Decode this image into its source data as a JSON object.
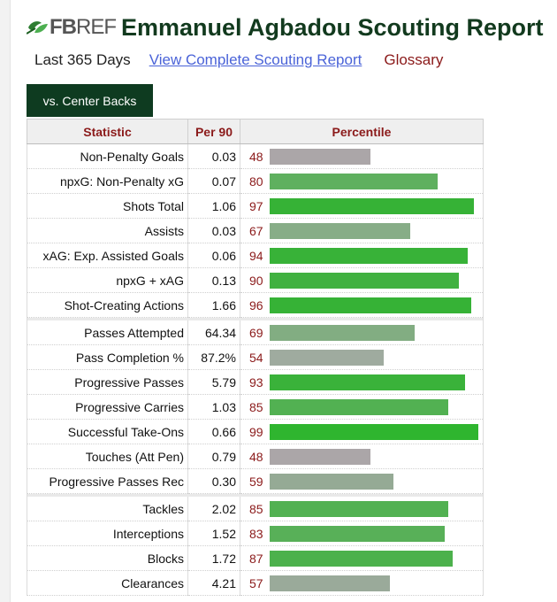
{
  "header": {
    "logo_fb": "FB",
    "logo_ref": "REF",
    "title": "Emmanuel Agbadou Scouting Report"
  },
  "subnav": {
    "period": "Last 365 Days",
    "full_report_link": "View Complete Scouting Report",
    "glossary_link": "Glossary"
  },
  "tab": {
    "label": "vs. Center Backs"
  },
  "table": {
    "columns": [
      "Statistic",
      "Per 90",
      "Percentile"
    ],
    "groups": [
      [
        {
          "stat": "Non-Penalty Goals",
          "per90": "0.03",
          "percentile": 48,
          "color": "#aba6a8"
        },
        {
          "stat": "npxG: Non-Penalty xG",
          "per90": "0.07",
          "percentile": 80,
          "color": "#5fb05f"
        },
        {
          "stat": "Shots Total",
          "per90": "1.06",
          "percentile": 97,
          "color": "#36b236"
        },
        {
          "stat": "Assists",
          "per90": "0.03",
          "percentile": 67,
          "color": "#87ad87"
        },
        {
          "stat": "xAG: Exp. Assisted Goals",
          "per90": "0.06",
          "percentile": 94,
          "color": "#38b238"
        },
        {
          "stat": "npxG + xAG",
          "per90": "0.13",
          "percentile": 90,
          "color": "#40b140"
        },
        {
          "stat": "Shot-Creating Actions",
          "per90": "1.66",
          "percentile": 96,
          "color": "#36b236"
        }
      ],
      [
        {
          "stat": "Passes Attempted",
          "per90": "64.34",
          "percentile": 69,
          "color": "#82ad82"
        },
        {
          "stat": "Pass Completion %",
          "per90": "87.2%",
          "percentile": 54,
          "color": "#9fab9f"
        },
        {
          "stat": "Progressive Passes",
          "per90": "5.79",
          "percentile": 93,
          "color": "#3ab23a"
        },
        {
          "stat": "Progressive Carries",
          "per90": "1.03",
          "percentile": 85,
          "color": "#52b152"
        },
        {
          "stat": "Successful Take-Ons",
          "per90": "0.66",
          "percentile": 99,
          "color": "#2fb52f"
        },
        {
          "stat": "Touches (Att Pen)",
          "per90": "0.79",
          "percentile": 48,
          "color": "#aba6a8"
        },
        {
          "stat": "Progressive Passes Rec",
          "per90": "0.30",
          "percentile": 59,
          "color": "#95aa95"
        }
      ],
      [
        {
          "stat": "Tackles",
          "per90": "2.02",
          "percentile": 85,
          "color": "#52b152"
        },
        {
          "stat": "Interceptions",
          "per90": "1.52",
          "percentile": 83,
          "color": "#58b058"
        },
        {
          "stat": "Blocks",
          "per90": "1.72",
          "percentile": 87,
          "color": "#4cb14c"
        },
        {
          "stat": "Clearances",
          "per90": "4.21",
          "percentile": 57,
          "color": "#9aaa9a"
        }
      ]
    ]
  }
}
